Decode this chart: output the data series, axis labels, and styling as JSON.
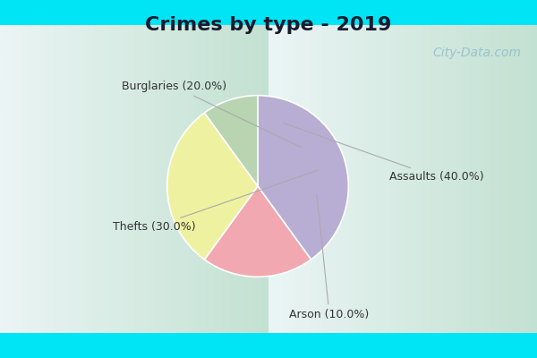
{
  "title": "Crimes by type - 2019",
  "slices": [
    {
      "label": "Assaults",
      "pct": 40.0,
      "color": "#b8aed4"
    },
    {
      "label": "Burglaries",
      "pct": 20.0,
      "color": "#f2a8b0"
    },
    {
      "label": "Thefts",
      "pct": 30.0,
      "color": "#eef2a0"
    },
    {
      "label": "Arson",
      "pct": 10.0,
      "color": "#b8d4b0"
    }
  ],
  "bg_cyan": "#00e5f5",
  "bg_inner_top": "#d8eeea",
  "bg_inner_bottom": "#c0e8d8",
  "watermark": "City-Data.com",
  "title_fontsize": 16,
  "label_fontsize": 9,
  "startangle": 90,
  "counterclock": false,
  "label_color": "#333333",
  "arrow_color": "#aaaaaa"
}
